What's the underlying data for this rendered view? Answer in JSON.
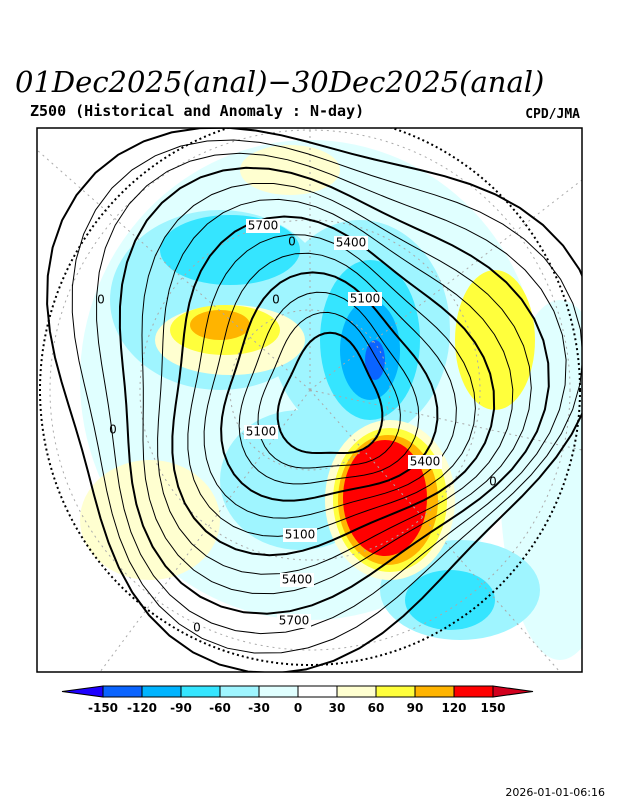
{
  "header": {
    "title": "01Dec2025(anal)−30Dec2025(anal)",
    "subtitle": "Z500 (Historical and Anomaly : N-day)",
    "credit": "CPD/JMA"
  },
  "contour_labels": [
    5700,
    5400,
    5100,
    5100,
    5400,
    5100,
    5400,
    5700
  ],
  "zero_labels": [
    0,
    0,
    0,
    0,
    0,
    0
  ],
  "colorbar": {
    "ticks": [
      -150,
      -120,
      -90,
      -60,
      -30,
      0,
      30,
      60,
      90,
      120,
      150
    ],
    "colors": [
      "#1e00ff",
      "#0a64ff",
      "#00b4ff",
      "#35e5ff",
      "#9ff5ff",
      "#e0ffff",
      "#ffffff",
      "#ffffd0",
      "#ffff3c",
      "#ffb400",
      "#ff0000",
      "#d2001e"
    ]
  },
  "timestamp": "2026-01-01-06:16"
}
